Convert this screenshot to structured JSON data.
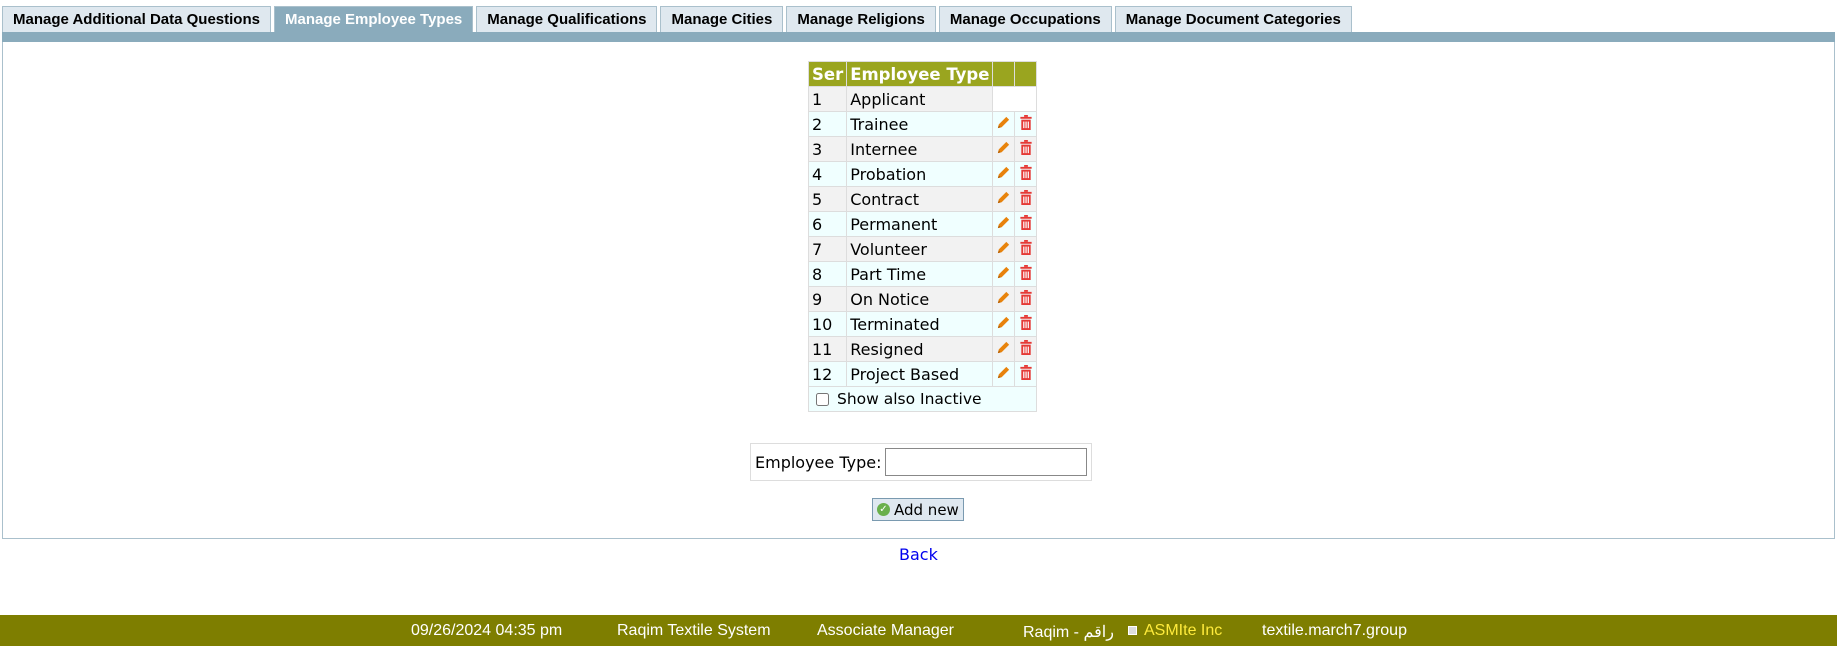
{
  "tabs": [
    "Manage Additional Data Questions",
    "Manage Employee Types",
    "Manage Qualifications",
    "Manage Cities",
    "Manage Religions",
    "Manage Occupations",
    "Manage Document Categories"
  ],
  "active_tab": 1,
  "table": {
    "headers": [
      "Ser",
      "Employee Type",
      "",
      ""
    ],
    "rows": [
      [
        "1",
        "Applicant"
      ],
      [
        "2",
        "Trainee"
      ],
      [
        "3",
        "Internee"
      ],
      [
        "4",
        "Probation"
      ],
      [
        "5",
        "Contract"
      ],
      [
        "6",
        "Permanent"
      ],
      [
        "7",
        "Volunteer"
      ],
      [
        "8",
        "Part Time"
      ],
      [
        "9",
        "On Notice"
      ],
      [
        "10",
        "Terminated"
      ],
      [
        "11",
        "Resigned"
      ],
      [
        "12",
        "Project Based"
      ]
    ],
    "show_inactive_label": "Show also Inactive"
  },
  "form": {
    "label": "Employee Type:",
    "value": "",
    "add_label": "Add new"
  },
  "back_label": "Back",
  "footer": {
    "datetime": "09/26/2024 04:35 pm",
    "system": "Raqim Textile System",
    "role": "Associate Manager",
    "brand": "Raqim - راقم",
    "company": "ASMIte Inc",
    "domain": "textile.march7.group"
  },
  "colors": {
    "header": "#9aa51f",
    "footer": "#7e7e00",
    "tab_active": "#8aabbc",
    "edit": "#e8830c",
    "delete": "#e53935"
  }
}
